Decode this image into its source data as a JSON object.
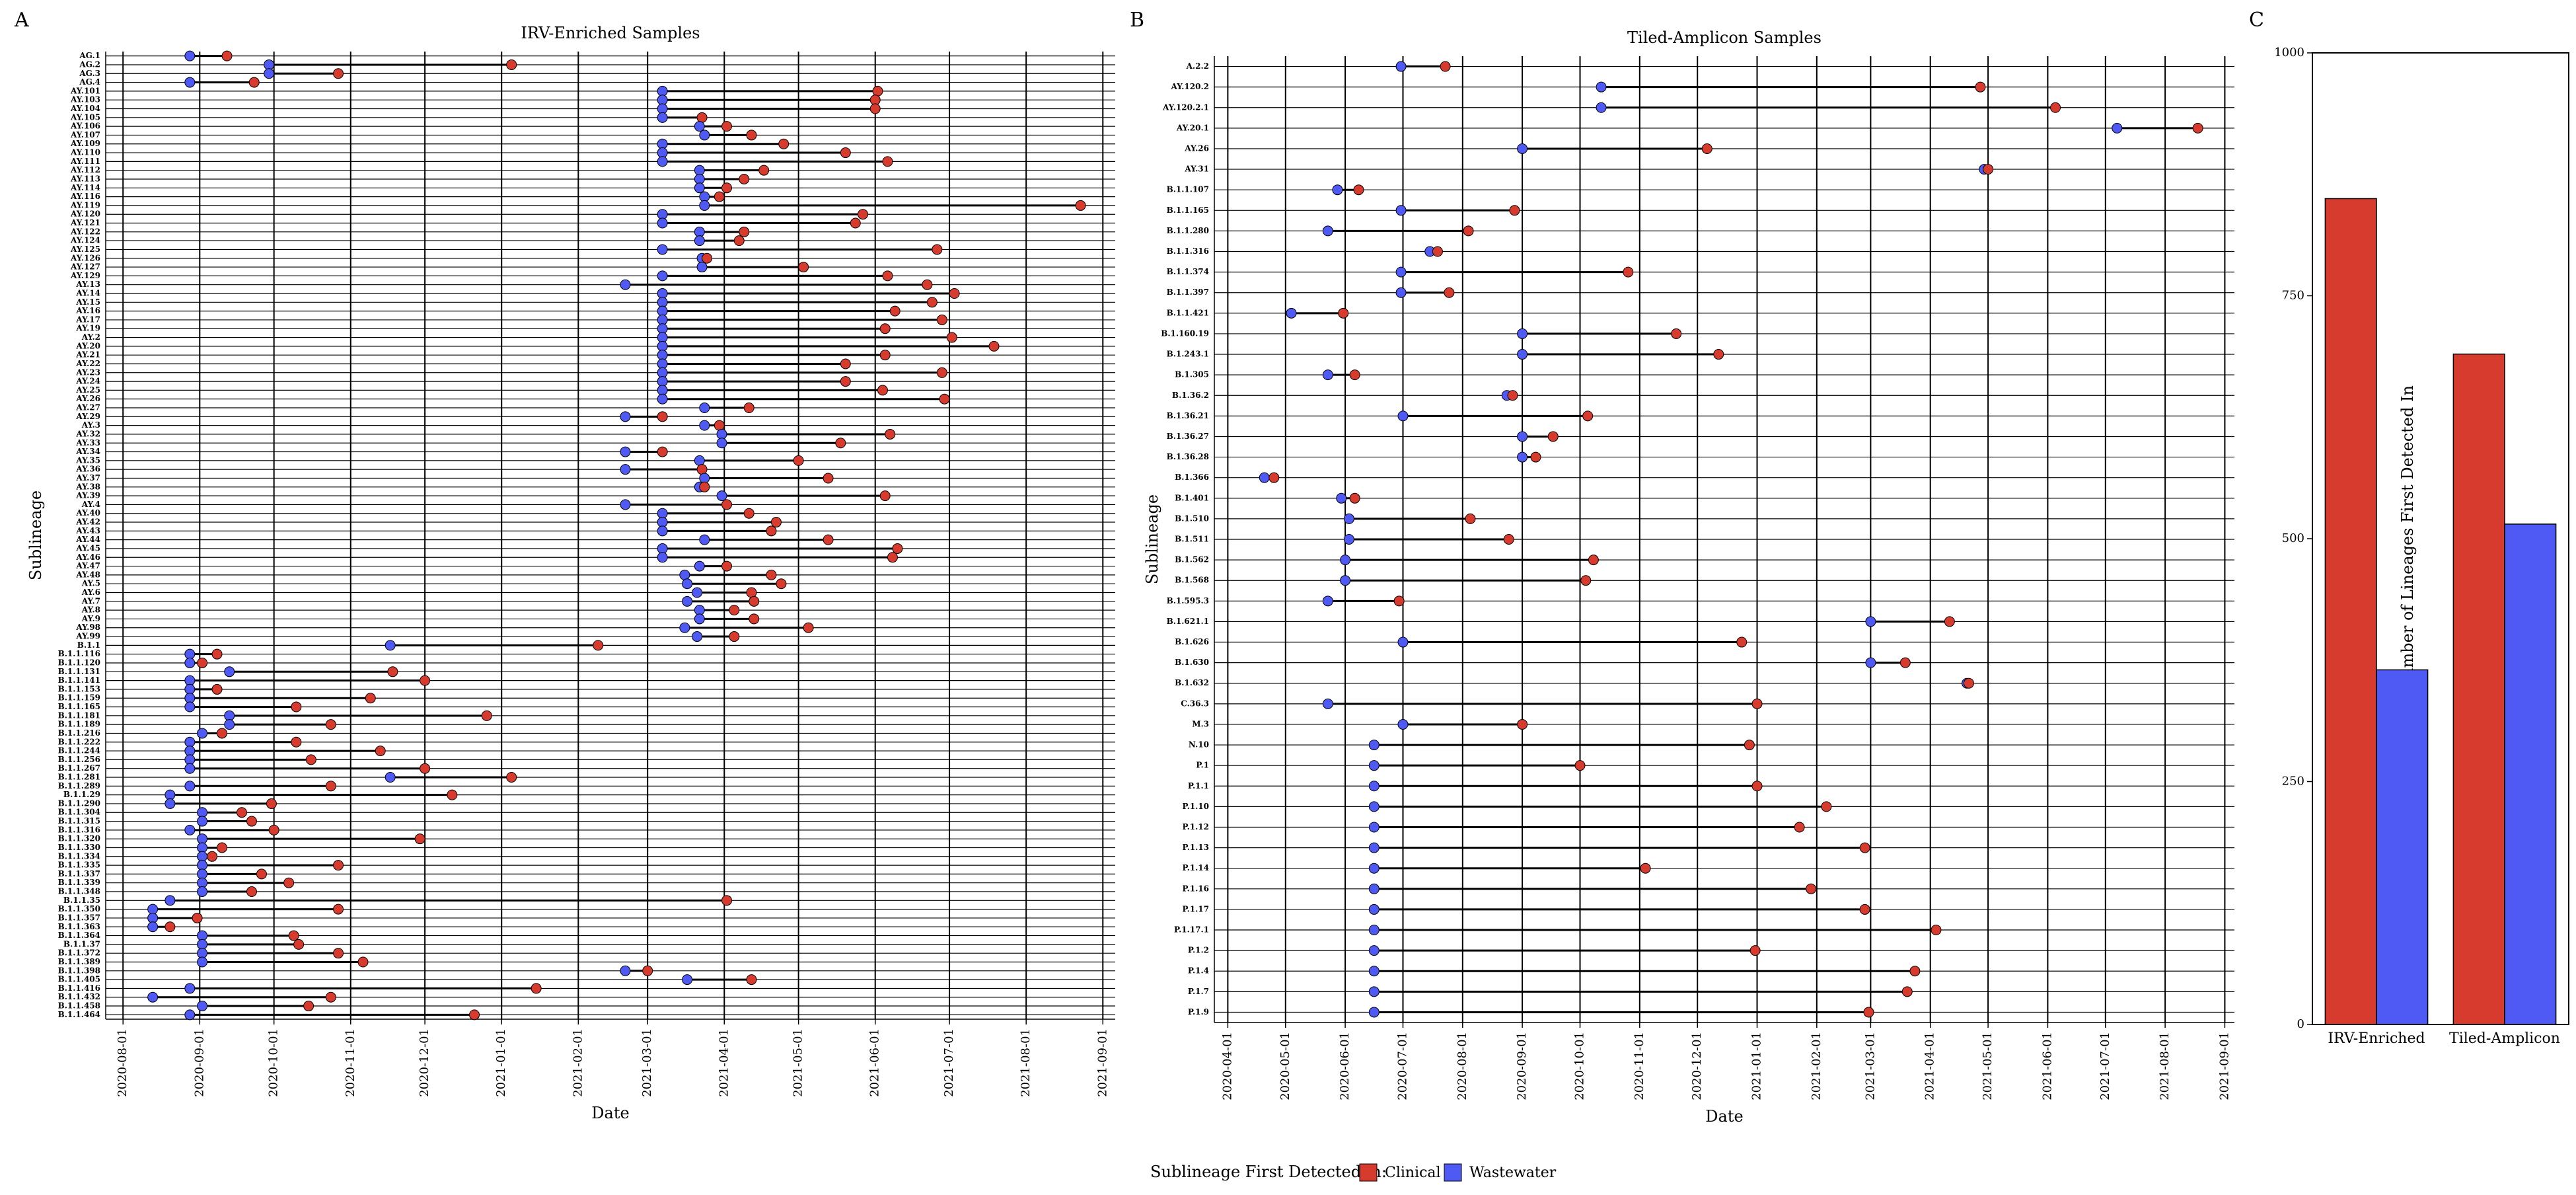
{
  "figure": {
    "legend": {
      "title": "Sublineage First Detected in:",
      "items": [
        {
          "label": "Clinical",
          "color": "#d63b2e"
        },
        {
          "label": "Wastewater",
          "color": "#4f5af5"
        }
      ]
    }
  },
  "chart_data": [
    {
      "panel": "A",
      "type": "dumbbell",
      "title": "IRV-Enriched Samples",
      "xlabel": "Date",
      "ylabel": "Sublineage",
      "xlim": [
        "2020-07-25",
        "2021-09-06"
      ],
      "xticks": [
        "2020-08-01",
        "2020-09-01",
        "2020-10-01",
        "2020-11-01",
        "2020-12-01",
        "2021-01-01",
        "2021-02-01",
        "2021-03-01",
        "2021-04-01",
        "2021-05-01",
        "2021-06-01",
        "2021-07-01",
        "2021-08-01",
        "2021-09-01"
      ],
      "rows": [
        {
          "label": "AG.1",
          "blue": "2020-08-28",
          "red": "2020-09-12"
        },
        {
          "label": "AG.2",
          "blue": "2020-09-29",
          "red": "2021-01-05"
        },
        {
          "label": "AG.3",
          "blue": "2020-09-29",
          "red": "2020-10-27"
        },
        {
          "label": "AG.4",
          "blue": "2020-08-28",
          "red": "2020-09-23"
        },
        {
          "label": "AY.101",
          "blue": "2021-03-07",
          "red": "2021-06-02"
        },
        {
          "label": "AY.103",
          "blue": "2021-03-07",
          "red": "2021-06-01"
        },
        {
          "label": "AY.104",
          "blue": "2021-03-07",
          "red": "2021-06-01"
        },
        {
          "label": "AY.105",
          "blue": "2021-03-07",
          "red": "2021-03-23"
        },
        {
          "label": "AY.106",
          "blue": "2021-03-22",
          "red": "2021-04-02"
        },
        {
          "label": "AY.107",
          "blue": "2021-03-24",
          "red": "2021-04-12"
        },
        {
          "label": "AY.109",
          "blue": "2021-03-07",
          "red": "2021-04-25"
        },
        {
          "label": "AY.110",
          "blue": "2021-03-07",
          "red": "2021-05-20"
        },
        {
          "label": "AY.111",
          "blue": "2021-03-07",
          "red": "2021-06-06"
        },
        {
          "label": "AY.112",
          "blue": "2021-03-22",
          "red": "2021-04-17"
        },
        {
          "label": "AY.113",
          "blue": "2021-03-22",
          "red": "2021-04-09"
        },
        {
          "label": "AY.114",
          "blue": "2021-03-22",
          "red": "2021-04-02"
        },
        {
          "label": "AY.116",
          "blue": "2021-03-24",
          "red": "2021-03-30"
        },
        {
          "label": "AY.119",
          "blue": "2021-03-24",
          "red": "2021-08-23"
        },
        {
          "label": "AY.120",
          "blue": "2021-03-07",
          "red": "2021-05-27"
        },
        {
          "label": "AY.121",
          "blue": "2021-03-07",
          "red": "2021-05-24"
        },
        {
          "label": "AY.122",
          "blue": "2021-03-22",
          "red": "2021-04-09"
        },
        {
          "label": "AY.124",
          "blue": "2021-03-22",
          "red": "2021-04-07"
        },
        {
          "label": "AY.125",
          "blue": "2021-03-07",
          "red": "2021-06-26"
        },
        {
          "label": "AY.126",
          "blue": "2021-03-23",
          "red": "2021-03-25"
        },
        {
          "label": "AY.127",
          "blue": "2021-03-23",
          "red": "2021-05-03"
        },
        {
          "label": "AY.129",
          "blue": "2021-03-07",
          "red": "2021-06-06"
        },
        {
          "label": "AY.13",
          "blue": "2021-02-20",
          "red": "2021-06-22"
        },
        {
          "label": "AY.14",
          "blue": "2021-03-07",
          "red": "2021-07-03"
        },
        {
          "label": "AY.15",
          "blue": "2021-03-07",
          "red": "2021-06-24"
        },
        {
          "label": "AY.16",
          "blue": "2021-03-07",
          "red": "2021-06-09"
        },
        {
          "label": "AY.17",
          "blue": "2021-03-07",
          "red": "2021-06-28"
        },
        {
          "label": "AY.19",
          "blue": "2021-03-07",
          "red": "2021-06-05"
        },
        {
          "label": "AY.2",
          "blue": "2021-03-07",
          "red": "2021-07-02"
        },
        {
          "label": "AY.20",
          "blue": "2021-03-07",
          "red": "2021-07-19"
        },
        {
          "label": "AY.21",
          "blue": "2021-03-07",
          "red": "2021-06-05"
        },
        {
          "label": "AY.22",
          "blue": "2021-03-07",
          "red": "2021-05-20"
        },
        {
          "label": "AY.23",
          "blue": "2021-03-07",
          "red": "2021-06-28"
        },
        {
          "label": "AY.24",
          "blue": "2021-03-07",
          "red": "2021-05-20"
        },
        {
          "label": "AY.25",
          "blue": "2021-03-07",
          "red": "2021-06-04"
        },
        {
          "label": "AY.26",
          "blue": "2021-03-07",
          "red": "2021-06-29"
        },
        {
          "label": "AY.27",
          "blue": "2021-03-24",
          "red": "2021-04-11"
        },
        {
          "label": "AY.29",
          "blue": "2021-02-20",
          "red": "2021-03-07"
        },
        {
          "label": "AY.3",
          "blue": "2021-03-24",
          "red": "2021-03-30"
        },
        {
          "label": "AY.32",
          "blue": "2021-03-31",
          "red": "2021-06-07"
        },
        {
          "label": "AY.33",
          "blue": "2021-03-31",
          "red": "2021-05-18"
        },
        {
          "label": "AY.34",
          "blue": "2021-02-20",
          "red": "2021-03-07"
        },
        {
          "label": "AY.35",
          "blue": "2021-03-22",
          "red": "2021-05-01"
        },
        {
          "label": "AY.36",
          "blue": "2021-02-20",
          "red": "2021-03-23"
        },
        {
          "label": "AY.37",
          "blue": "2021-03-24",
          "red": "2021-05-13"
        },
        {
          "label": "AY.38",
          "blue": "2021-03-22",
          "red": "2021-03-24"
        },
        {
          "label": "AY.39",
          "blue": "2021-03-31",
          "red": "2021-06-05"
        },
        {
          "label": "AY.4",
          "blue": "2021-02-20",
          "red": "2021-04-02"
        },
        {
          "label": "AY.40",
          "blue": "2021-03-07",
          "red": "2021-04-11"
        },
        {
          "label": "AY.42",
          "blue": "2021-03-07",
          "red": "2021-04-22"
        },
        {
          "label": "AY.43",
          "blue": "2021-03-07",
          "red": "2021-04-20"
        },
        {
          "label": "AY.44",
          "blue": "2021-03-24",
          "red": "2021-05-13"
        },
        {
          "label": "AY.45",
          "blue": "2021-03-07",
          "red": "2021-06-10"
        },
        {
          "label": "AY.46",
          "blue": "2021-03-07",
          "red": "2021-06-08"
        },
        {
          "label": "AY.47",
          "blue": "2021-03-22",
          "red": "2021-04-02"
        },
        {
          "label": "AY.48",
          "blue": "2021-03-16",
          "red": "2021-04-20"
        },
        {
          "label": "AY.5",
          "blue": "2021-03-17",
          "red": "2021-04-24"
        },
        {
          "label": "AY.6",
          "blue": "2021-03-21",
          "red": "2021-04-12"
        },
        {
          "label": "AY.7",
          "blue": "2021-03-17",
          "red": "2021-04-13"
        },
        {
          "label": "AY.8",
          "blue": "2021-03-22",
          "red": "2021-04-05"
        },
        {
          "label": "AY.9",
          "blue": "2021-03-22",
          "red": "2021-04-13"
        },
        {
          "label": "AY.98",
          "blue": "2021-03-16",
          "red": "2021-05-05"
        },
        {
          "label": "AY.99",
          "blue": "2021-03-21",
          "red": "2021-04-05"
        },
        {
          "label": "B.1.1",
          "blue": "2020-11-17",
          "red": "2021-02-09"
        },
        {
          "label": "B.1.1.116",
          "blue": "2020-08-28",
          "red": "2020-09-08"
        },
        {
          "label": "B.1.1.120",
          "blue": "2020-08-28",
          "red": "2020-09-02"
        },
        {
          "label": "B.1.1.131",
          "blue": "2020-09-13",
          "red": "2020-11-18"
        },
        {
          "label": "B.1.1.141",
          "blue": "2020-08-28",
          "red": "2020-12-01"
        },
        {
          "label": "B.1.1.153",
          "blue": "2020-08-28",
          "red": "2020-09-08"
        },
        {
          "label": "B.1.1.159",
          "blue": "2020-08-28",
          "red": "2020-11-09"
        },
        {
          "label": "B.1.1.165",
          "blue": "2020-08-28",
          "red": "2020-10-10"
        },
        {
          "label": "B.1.1.181",
          "blue": "2020-09-13",
          "red": "2020-12-26"
        },
        {
          "label": "B.1.1.189",
          "blue": "2020-09-13",
          "red": "2020-10-24"
        },
        {
          "label": "B.1.1.216",
          "blue": "2020-09-02",
          "red": "2020-09-10"
        },
        {
          "label": "B.1.1.222",
          "blue": "2020-08-28",
          "red": "2020-10-10"
        },
        {
          "label": "B.1.1.244",
          "blue": "2020-08-28",
          "red": "2020-11-13"
        },
        {
          "label": "B.1.1.256",
          "blue": "2020-08-28",
          "red": "2020-10-16"
        },
        {
          "label": "B.1.1.267",
          "blue": "2020-08-28",
          "red": "2020-12-01"
        },
        {
          "label": "B.1.1.281",
          "blue": "2020-11-17",
          "red": "2021-01-05"
        },
        {
          "label": "B.1.1.289",
          "blue": "2020-08-28",
          "red": "2020-10-24"
        },
        {
          "label": "B.1.1.29",
          "blue": "2020-08-20",
          "red": "2020-12-12"
        },
        {
          "label": "B.1.1.290",
          "blue": "2020-08-20",
          "red": "2020-09-30"
        },
        {
          "label": "B.1.1.304",
          "blue": "2020-09-02",
          "red": "2020-09-18"
        },
        {
          "label": "B.1.1.315",
          "blue": "2020-09-02",
          "red": "2020-09-22"
        },
        {
          "label": "B.1.1.316",
          "blue": "2020-08-28",
          "red": "2020-10-01"
        },
        {
          "label": "B.1.1.320",
          "blue": "2020-09-02",
          "red": "2020-11-29"
        },
        {
          "label": "B.1.1.330",
          "blue": "2020-09-02",
          "red": "2020-09-10"
        },
        {
          "label": "B.1.1.334",
          "blue": "2020-09-02",
          "red": "2020-09-06"
        },
        {
          "label": "B.1.1.335",
          "blue": "2020-09-02",
          "red": "2020-10-27"
        },
        {
          "label": "B.1.1.337",
          "blue": "2020-09-02",
          "red": "2020-09-26"
        },
        {
          "label": "B.1.1.339",
          "blue": "2020-09-02",
          "red": "2020-10-07"
        },
        {
          "label": "B.1.1.348",
          "blue": "2020-09-02",
          "red": "2020-09-22"
        },
        {
          "label": "B.1.1.35",
          "blue": "2020-08-20",
          "red": "2021-04-02"
        },
        {
          "label": "B.1.1.350",
          "blue": "2020-08-13",
          "red": "2020-10-27"
        },
        {
          "label": "B.1.1.357",
          "blue": "2020-08-13",
          "red": "2020-08-31"
        },
        {
          "label": "B.1.1.363",
          "blue": "2020-08-13",
          "red": "2020-08-20"
        },
        {
          "label": "B.1.1.364",
          "blue": "2020-09-02",
          "red": "2020-10-09"
        },
        {
          "label": "B.1.1.37",
          "blue": "2020-09-02",
          "red": "2020-10-11"
        },
        {
          "label": "B.1.1.372",
          "blue": "2020-09-02",
          "red": "2020-10-27"
        },
        {
          "label": "B.1.1.389",
          "blue": "2020-09-02",
          "red": "2020-11-06"
        },
        {
          "label": "B.1.1.398",
          "blue": "2021-02-20",
          "red": "2021-03-01"
        },
        {
          "label": "B.1.1.405",
          "blue": "2021-03-17",
          "red": "2021-04-12"
        },
        {
          "label": "B.1.1.416",
          "blue": "2020-08-28",
          "red": "2021-01-15"
        },
        {
          "label": "B.1.1.432",
          "blue": "2020-08-13",
          "red": "2020-10-24"
        },
        {
          "label": "B.1.1.458",
          "blue": "2020-09-02",
          "red": "2020-10-15"
        },
        {
          "label": "B.1.1.464",
          "blue": "2020-08-28",
          "red": "2020-12-21"
        }
      ]
    },
    {
      "panel": "B",
      "type": "dumbbell",
      "title": "Tiled-Amplicon Samples",
      "xlabel": "Date",
      "ylabel": "Sublineage",
      "xlim": [
        "2020-03-25",
        "2021-09-06"
      ],
      "xticks": [
        "2020-04-01",
        "2020-05-01",
        "2020-06-01",
        "2020-07-01",
        "2020-08-01",
        "2020-09-01",
        "2020-10-01",
        "2020-11-01",
        "2020-12-01",
        "2021-01-01",
        "2021-02-01",
        "2021-03-01",
        "2021-04-01",
        "2021-05-01",
        "2021-06-01",
        "2021-07-01",
        "2021-08-01",
        "2021-09-01"
      ],
      "rows": [
        {
          "label": "A.2.2",
          "blue": "2020-06-30",
          "red": "2020-07-23"
        },
        {
          "label": "AY.120.2",
          "blue": "2020-10-12",
          "red": "2021-04-27"
        },
        {
          "label": "AY.120.2.1",
          "blue": "2020-10-12",
          "red": "2021-06-05"
        },
        {
          "label": "AY.20.1",
          "blue": "2021-07-07",
          "red": "2021-08-18"
        },
        {
          "label": "AY.26",
          "blue": "2020-09-01",
          "red": "2020-12-06"
        },
        {
          "label": "AY.31",
          "blue": "2021-04-29",
          "red": "2021-05-01"
        },
        {
          "label": "B.1.1.107",
          "blue": "2020-05-28",
          "red": "2020-06-08"
        },
        {
          "label": "B.1.1.165",
          "blue": "2020-06-30",
          "red": "2020-08-28"
        },
        {
          "label": "B.1.1.280",
          "blue": "2020-05-23",
          "red": "2020-08-04"
        },
        {
          "label": "B.1.1.316",
          "blue": "2020-07-15",
          "red": "2020-07-19"
        },
        {
          "label": "B.1.1.374",
          "blue": "2020-06-30",
          "red": "2020-10-26"
        },
        {
          "label": "B.1.1.397",
          "blue": "2020-06-30",
          "red": "2020-07-25"
        },
        {
          "label": "B.1.1.421",
          "blue": "2020-05-04",
          "red": "2020-05-31"
        },
        {
          "label": "B.1.160.19",
          "blue": "2020-09-01",
          "red": "2020-11-20"
        },
        {
          "label": "B.1.243.1",
          "blue": "2020-09-01",
          "red": "2020-12-12"
        },
        {
          "label": "B.1.305",
          "blue": "2020-05-23",
          "red": "2020-06-06"
        },
        {
          "label": "B.1.36.2",
          "blue": "2020-08-24",
          "red": "2020-08-27"
        },
        {
          "label": "B.1.36.21",
          "blue": "2020-07-01",
          "red": "2020-10-05"
        },
        {
          "label": "B.1.36.27",
          "blue": "2020-09-01",
          "red": "2020-09-17"
        },
        {
          "label": "B.1.36.28",
          "blue": "2020-09-01",
          "red": "2020-09-08"
        },
        {
          "label": "B.1.366",
          "blue": "2020-04-20",
          "red": "2020-04-25"
        },
        {
          "label": "B.1.401",
          "blue": "2020-05-30",
          "red": "2020-06-06"
        },
        {
          "label": "B.1.510",
          "blue": "2020-06-03",
          "red": "2020-08-05"
        },
        {
          "label": "B.1.511",
          "blue": "2020-06-03",
          "red": "2020-08-25"
        },
        {
          "label": "B.1.562",
          "blue": "2020-06-01",
          "red": "2020-10-08"
        },
        {
          "label": "B.1.568",
          "blue": "2020-06-01",
          "red": "2020-10-04"
        },
        {
          "label": "B.1.595.3",
          "blue": "2020-05-23",
          "red": "2020-06-29"
        },
        {
          "label": "B.1.621.1",
          "blue": "2021-03-01",
          "red": "2021-04-11"
        },
        {
          "label": "B.1.626",
          "blue": "2020-07-01",
          "red": "2020-12-24"
        },
        {
          "label": "B.1.630",
          "blue": "2021-03-01",
          "red": "2021-03-19"
        },
        {
          "label": "B.1.632",
          "blue": "2021-04-20",
          "red": "2021-04-21"
        },
        {
          "label": "C.36.3",
          "blue": "2020-05-23",
          "red": "2021-01-01"
        },
        {
          "label": "M.3",
          "blue": "2020-07-01",
          "red": "2020-09-01"
        },
        {
          "label": "N.10",
          "blue": "2020-06-16",
          "red": "2020-12-28"
        },
        {
          "label": "P.1",
          "blue": "2020-06-16",
          "red": "2020-10-01"
        },
        {
          "label": "P.1.1",
          "blue": "2020-06-16",
          "red": "2021-01-01"
        },
        {
          "label": "P.1.10",
          "blue": "2020-06-16",
          "red": "2021-02-06"
        },
        {
          "label": "P.1.12",
          "blue": "2020-06-16",
          "red": "2021-01-23"
        },
        {
          "label": "P.1.13",
          "blue": "2020-06-16",
          "red": "2021-02-26"
        },
        {
          "label": "P.1.14",
          "blue": "2020-06-16",
          "red": "2020-11-04"
        },
        {
          "label": "P.1.16",
          "blue": "2020-06-16",
          "red": "2021-01-29"
        },
        {
          "label": "P.1.17",
          "blue": "2020-06-16",
          "red": "2021-02-26"
        },
        {
          "label": "P.1.17.1",
          "blue": "2020-06-16",
          "red": "2021-04-04"
        },
        {
          "label": "P.1.2",
          "blue": "2020-06-16",
          "red": "2020-12-31"
        },
        {
          "label": "P.1.4",
          "blue": "2020-06-16",
          "red": "2021-03-24"
        },
        {
          "label": "P.1.7",
          "blue": "2020-06-16",
          "red": "2021-03-20"
        },
        {
          "label": "P.1.9",
          "blue": "2020-06-16",
          "red": "2021-02-28"
        }
      ]
    },
    {
      "panel": "C",
      "type": "bar",
      "title": "",
      "xlabel": "",
      "ylabel": "Number of Lineages First Detected In",
      "ylim": [
        0,
        1000
      ],
      "yticks": [
        "0",
        "250",
        "500",
        "750",
        "1000"
      ],
      "categories": [
        "IRV-Enriched",
        "Tiled-Amplicon"
      ],
      "series": [
        {
          "name": "Clinical",
          "color": "#d63b2e",
          "values": [
            850,
            690
          ]
        },
        {
          "name": "Wastewater",
          "color": "#4f5af5",
          "values": [
            365,
            515
          ]
        }
      ]
    }
  ]
}
